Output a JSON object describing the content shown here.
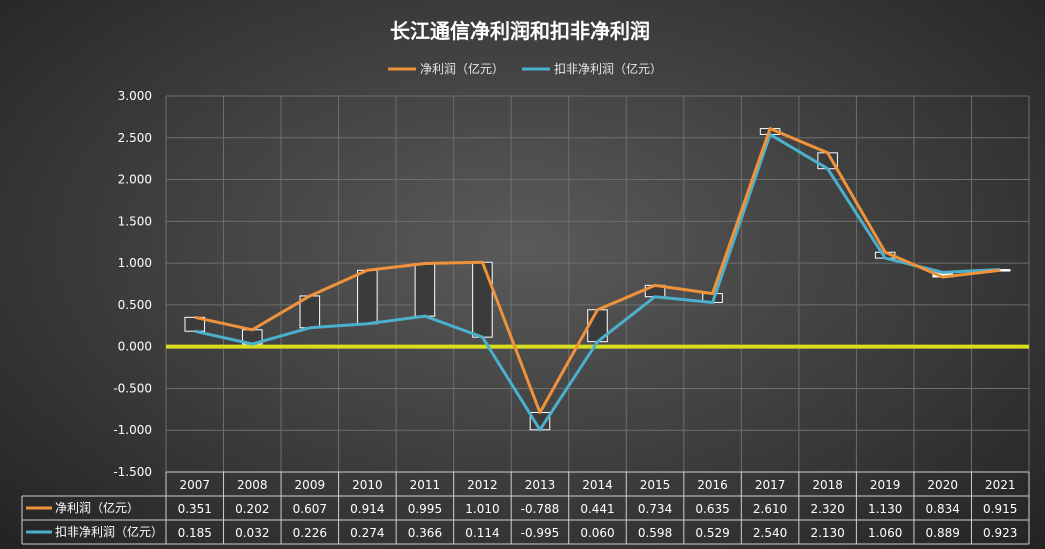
{
  "chart_data": {
    "type": "line",
    "title": "长江通信净利润和扣非净利润",
    "categories": [
      "2007",
      "2008",
      "2009",
      "2010",
      "2011",
      "2012",
      "2013",
      "2014",
      "2015",
      "2016",
      "2017",
      "2018",
      "2019",
      "2020",
      "2021"
    ],
    "series": [
      {
        "name": "净利润（亿元）",
        "color": "#f0923c",
        "values": [
          0.351,
          0.202,
          0.607,
          0.914,
          0.995,
          1.01,
          -0.788,
          0.441,
          0.734,
          0.635,
          2.61,
          2.32,
          1.13,
          0.834,
          0.915
        ],
        "labels": [
          "0.351",
          "0.202",
          "0.607",
          "0.914",
          "0.995",
          "1.010",
          "-0.788",
          "0.441",
          "0.734",
          "0.635",
          "2.610",
          "2.320",
          "1.130",
          "0.834",
          "0.915"
        ]
      },
      {
        "name": "扣非净利润（亿元）",
        "color": "#4bb0cc",
        "values": [
          0.185,
          0.032,
          0.226,
          0.274,
          0.366,
          0.114,
          -0.995,
          0.06,
          0.598,
          0.529,
          2.54,
          2.13,
          1.06,
          0.889,
          0.923
        ],
        "labels": [
          "0.185",
          "0.032",
          "0.226",
          "0.274",
          "0.366",
          "0.114",
          "-0.995",
          "0.060",
          "0.598",
          "0.529",
          "2.540",
          "2.130",
          "1.060",
          "0.889",
          "0.923"
        ]
      }
    ],
    "ylim": [
      -1.5,
      3.0
    ],
    "yticks": [
      "3.000",
      "2.500",
      "2.000",
      "1.500",
      "1.000",
      "0.500",
      "0.000",
      "-0.500",
      "-1.000",
      "-1.500"
    ],
    "zero_line_color": "#d8dd1f",
    "legend_position": "top-center",
    "grid": true,
    "data_table": true,
    "updown_bars": true
  }
}
